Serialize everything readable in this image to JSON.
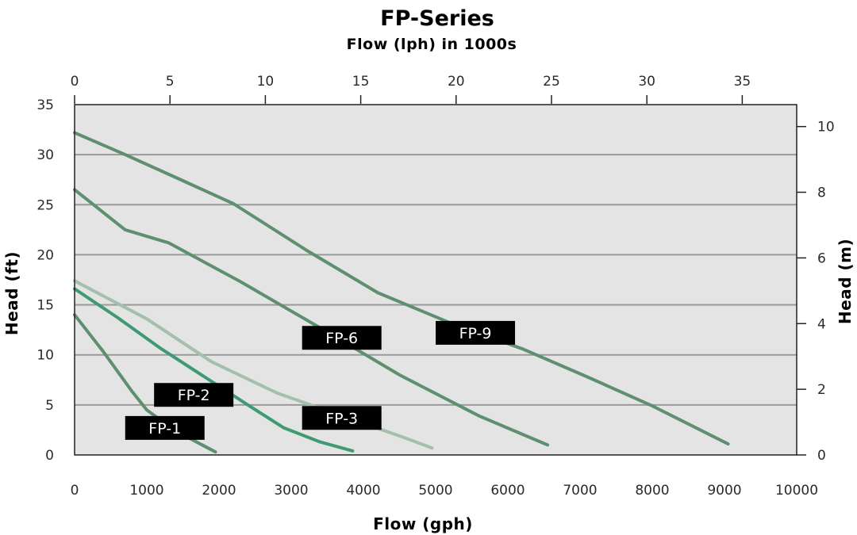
{
  "chart_data": {
    "type": "line",
    "title": "FP-Series",
    "subtitle": "Flow (lph)  in 1000s",
    "xlabel": "Flow (gph)",
    "ylabel": "Head (ft)",
    "y2label": "Head (m)",
    "xlim": [
      0,
      10000
    ],
    "ylim": [
      0,
      35
    ],
    "x_ticks": [
      "0",
      "1000",
      "2000",
      "3000",
      "4000",
      "5000",
      "6000",
      "7000",
      "8000",
      "9000",
      "10000"
    ],
    "y_ticks": [
      "0",
      "5",
      "10",
      "15",
      "20",
      "25",
      "30",
      "35"
    ],
    "x2_ticks": [
      "0",
      "5",
      "10",
      "15",
      "20",
      "25",
      "30",
      "35"
    ],
    "y2_ticks": [
      "0",
      "2",
      "4",
      "6",
      "8",
      "10"
    ],
    "grid": "horizontal",
    "colors": {
      "plot_bg": "#e4e4e4",
      "grid": "#9a9a9a",
      "series_dark": "#5e8f6e",
      "series_teal": "#3f9a74",
      "series_light": "#a4c0ac",
      "label_bg": "#000000",
      "label_text": "#ffffff"
    },
    "series": [
      {
        "name": "FP-1",
        "x": [
          0,
          400,
          800,
          1000,
          1400,
          1950
        ],
        "y": [
          14,
          10.3,
          6.3,
          4.5,
          2.4,
          0.3
        ]
      },
      {
        "name": "FP-2",
        "x": [
          0,
          600,
          1200,
          1800,
          2400,
          2900,
          3400,
          3850
        ],
        "y": [
          16.6,
          13.7,
          10.6,
          7.8,
          5.0,
          2.7,
          1.3,
          0.4
        ]
      },
      {
        "name": "FP-3",
        "x": [
          0,
          1000,
          1900,
          2800,
          3700,
          4500,
          4950
        ],
        "y": [
          17.4,
          13.6,
          9.3,
          6.2,
          3.9,
          1.9,
          0.7
        ]
      },
      {
        "name": "FP-6",
        "x": [
          0,
          700,
          1300,
          2300,
          3400,
          4500,
          5600,
          6550
        ],
        "y": [
          26.5,
          22.5,
          21.2,
          17.3,
          12.7,
          8.0,
          3.9,
          1.0
        ]
      },
      {
        "name": "FP-9",
        "x": [
          0,
          700,
          1500,
          2200,
          3200,
          4200,
          5200,
          6200,
          7100,
          8000,
          9050
        ],
        "y": [
          32.2,
          30.0,
          27.4,
          25.1,
          20.5,
          16.2,
          13.2,
          10.6,
          7.8,
          4.9,
          1.1
        ]
      }
    ],
    "labels": [
      {
        "text": "FP-1",
        "x": 1250,
        "y": 2.7
      },
      {
        "text": "FP-2",
        "x": 1650,
        "y": 6.0
      },
      {
        "text": "FP-3",
        "x": 3700,
        "y": 3.7
      },
      {
        "text": "FP-6",
        "x": 3700,
        "y": 11.7
      },
      {
        "text": "FP-9",
        "x": 5550,
        "y": 12.2
      }
    ]
  }
}
